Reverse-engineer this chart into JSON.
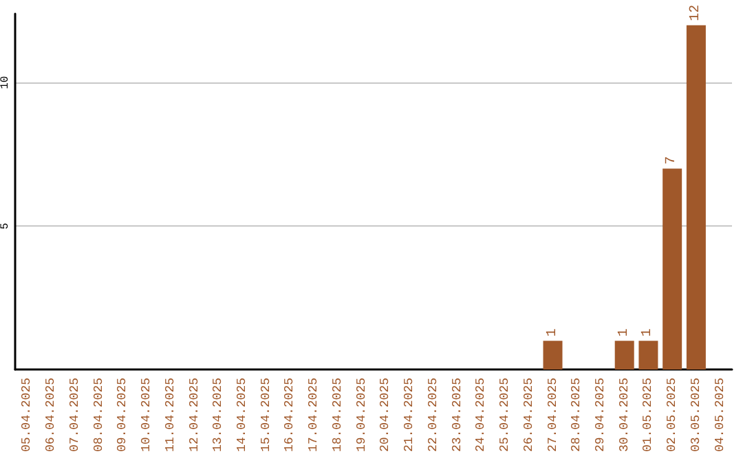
{
  "chart_data": {
    "type": "bar",
    "categories": [
      "05.04.2025",
      "06.04.2025",
      "07.04.2025",
      "08.04.2025",
      "09.04.2025",
      "10.04.2025",
      "11.04.2025",
      "12.04.2025",
      "13.04.2025",
      "14.04.2025",
      "15.04.2025",
      "16.04.2025",
      "17.04.2025",
      "18.04.2025",
      "19.04.2025",
      "20.04.2025",
      "21.04.2025",
      "22.04.2025",
      "23.04.2025",
      "24.04.2025",
      "25.04.2025",
      "26.04.2025",
      "27.04.2025",
      "28.04.2025",
      "29.04.2025",
      "30.04.2025",
      "01.05.2025",
      "02.05.2025",
      "03.05.2025",
      "04.05.2025"
    ],
    "values": [
      0,
      0,
      0,
      0,
      0,
      0,
      0,
      0,
      0,
      0,
      0,
      0,
      0,
      0,
      0,
      0,
      0,
      0,
      0,
      0,
      0,
      0,
      1,
      0,
      0,
      1,
      1,
      7,
      12,
      0
    ],
    "value_labels": [
      null,
      null,
      null,
      null,
      null,
      null,
      null,
      null,
      null,
      null,
      null,
      null,
      null,
      null,
      null,
      null,
      null,
      null,
      null,
      null,
      null,
      null,
      "1",
      null,
      null,
      "1",
      "1",
      "7",
      "12",
      null
    ],
    "color": "#a0582a",
    "ylim": [
      0,
      12.4
    ],
    "yticks": [
      5,
      10
    ],
    "grid": "y"
  }
}
